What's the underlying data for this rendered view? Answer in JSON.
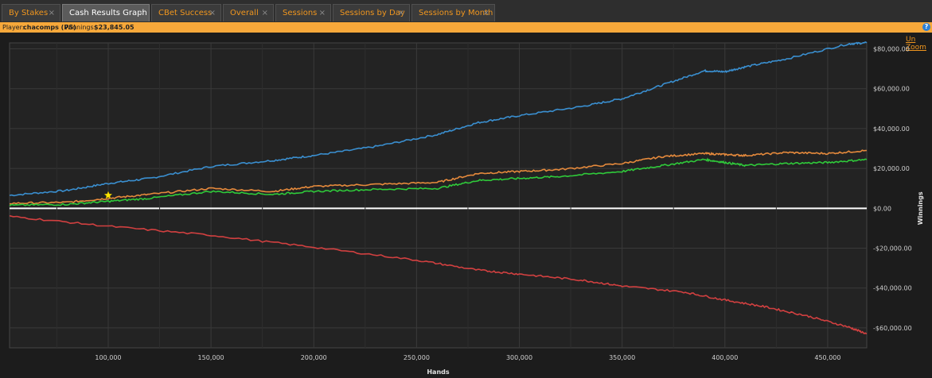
{
  "tabs": [
    {
      "label": "By Stakes",
      "active": false
    },
    {
      "label": "Cash Results Graph",
      "active": true
    },
    {
      "label": "CBet Success",
      "active": false
    },
    {
      "label": "Overall",
      "active": false
    },
    {
      "label": "Sessions",
      "active": false
    },
    {
      "label": "Sessions by Day",
      "active": false
    },
    {
      "label": "Sessions by Month",
      "active": false
    }
  ],
  "tab_close_glyph": "×",
  "info": {
    "player_label": "Player:",
    "player_name": "chacomps (PS)",
    "winnings_label": "Winnings:",
    "winnings_value": "$23,845.05",
    "help_glyph": "?"
  },
  "unzoom_label": "Un Zoom",
  "colors": {
    "accent": "#f0961e",
    "info_bar": "#f7a83a",
    "blue": "#3a8fd0",
    "orange": "#e68a3c",
    "green": "#2fca3a",
    "red": "#d24040",
    "marker": "#ffe600"
  },
  "marker_icon": "star-icon",
  "chart_data": {
    "type": "line",
    "xlabel": "Hands",
    "ylabel": "Winnings",
    "xlim": [
      52000,
      469000
    ],
    "ylim": [
      -70000,
      83000
    ],
    "x_ticks": [
      100000,
      150000,
      200000,
      250000,
      300000,
      350000,
      400000,
      450000
    ],
    "x_tick_labels": [
      "100,000",
      "150,000",
      "200,000",
      "250,000",
      "300,000",
      "350,000",
      "400,000",
      "450,000"
    ],
    "y_ticks": [
      80000,
      60000,
      40000,
      20000,
      0,
      -20000,
      -40000,
      -60000
    ],
    "y_tick_labels": [
      "$80,000.00",
      "$60,000.00",
      "$40,000.00",
      "$20,000.00",
      "$0.00",
      "-$20,000.00",
      "-$40,000.00",
      "-$60,000.00"
    ],
    "grid": true,
    "zero_line": true,
    "marker": {
      "x": 100000,
      "y": 6500
    },
    "series": [
      {
        "color": "#3a8fd0",
        "x": [
          52000,
          80000,
          100000,
          120000,
          150000,
          180000,
          200000,
          230000,
          260000,
          280000,
          300000,
          330000,
          350000,
          370000,
          390000,
          400000,
          410000,
          430000,
          460000,
          469000
        ],
        "y": [
          6500,
          9000,
          12500,
          15000,
          21000,
          24000,
          26500,
          31000,
          37000,
          43000,
          46500,
          51000,
          55000,
          62000,
          69000,
          68500,
          71000,
          75000,
          82500,
          83000
        ]
      },
      {
        "color": "#e68a3c",
        "x": [
          52000,
          80000,
          100000,
          120000,
          150000,
          180000,
          200000,
          230000,
          260000,
          280000,
          300000,
          320000,
          350000,
          370000,
          390000,
          400000,
          410000,
          430000,
          450000,
          469000
        ],
        "y": [
          2500,
          3000,
          5000,
          7000,
          10000,
          8500,
          11000,
          12000,
          13000,
          17500,
          18500,
          19500,
          22500,
          26000,
          27500,
          27000,
          26500,
          28000,
          27500,
          29000
        ]
      },
      {
        "color": "#2fca3a",
        "x": [
          52000,
          80000,
          100000,
          120000,
          150000,
          180000,
          200000,
          230000,
          260000,
          280000,
          300000,
          320000,
          350000,
          370000,
          390000,
          400000,
          410000,
          430000,
          450000,
          469000
        ],
        "y": [
          1500,
          2000,
          3500,
          5000,
          8500,
          7000,
          8500,
          9500,
          10000,
          14000,
          15000,
          16000,
          18500,
          21500,
          24500,
          23000,
          21500,
          22500,
          23000,
          24500
        ]
      },
      {
        "color": "#d24040",
        "x": [
          52000,
          100000,
          150000,
          200000,
          250000,
          280000,
          300000,
          330000,
          350000,
          380000,
          400000,
          420000,
          440000,
          460000,
          469000
        ],
        "y": [
          -4000,
          -9000,
          -13500,
          -19500,
          -26000,
          -31000,
          -33000,
          -36000,
          -39000,
          -42000,
          -46000,
          -49500,
          -54000,
          -59500,
          -63000
        ]
      }
    ]
  }
}
